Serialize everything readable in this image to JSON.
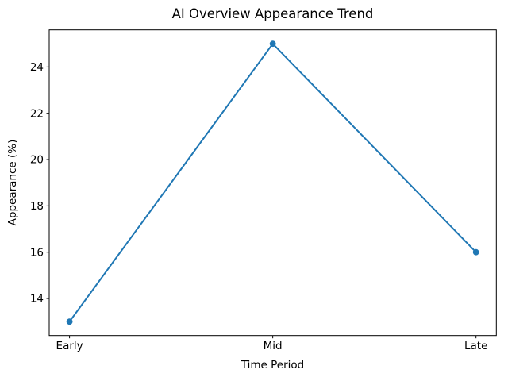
{
  "figure": {
    "background": "#ffffff"
  },
  "chart_data": {
    "type": "line",
    "title": "AI Overview Appearance Trend",
    "xlabel": "Time Period",
    "ylabel": "Appearance (%)",
    "categories": [
      "Early",
      "Mid",
      "Late"
    ],
    "values": [
      13,
      25,
      16
    ],
    "yticks": [
      14,
      16,
      18,
      20,
      22,
      24
    ],
    "ylim": [
      12.4,
      25.6
    ],
    "xlim": [
      -0.1,
      2.1
    ],
    "grid": false,
    "legend_position": "none",
    "line_color": "#1f77b4",
    "marker": "circle",
    "text_color": "#000000",
    "spine_color": "#000000"
  }
}
